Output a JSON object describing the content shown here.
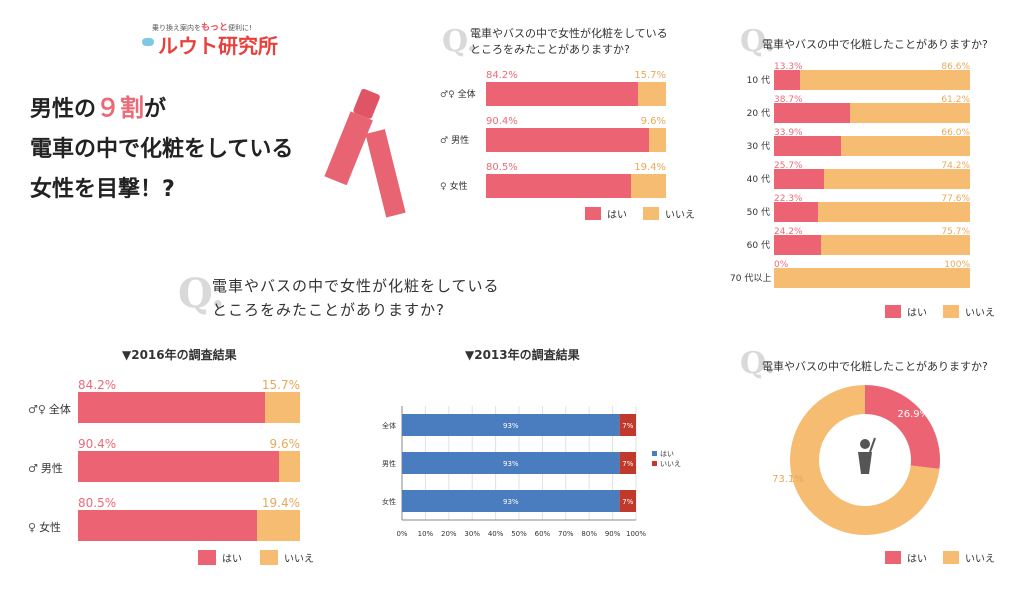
{
  "colors": {
    "hai": "#ec6474",
    "iie": "#f5bc72",
    "blue": "#4a7cc0",
    "red": "#c0392b"
  },
  "logo": {
    "tagline_pre": "乗り換え案内を",
    "tagline_em": "もっと",
    "tagline_post": "便利に!",
    "name": "ルウト研究所"
  },
  "headline": {
    "line1_a": "男性の",
    "line1_num": "９割",
    "line1_b": "が",
    "line2": "電車の中で化粧をしている",
    "line3": "女性を目撃！?"
  },
  "legend": {
    "hai": "はい",
    "iie": "いいえ"
  },
  "q_mark": "Q.",
  "q_big": {
    "line1": "電車やバスの中で女性が化粧をしている",
    "line2": "ところをみたことがありますか?"
  },
  "chart_data": [
    {
      "type": "bar",
      "title": "電車やバスの中で女性が化粧をしているところをみたことがありますか?",
      "categories": [
        "全体",
        "男性",
        "女性"
      ],
      "series": [
        {
          "name": "はい",
          "values": [
            84.2,
            90.4,
            80.5
          ]
        },
        {
          "name": "いいえ",
          "values": [
            15.7,
            9.6,
            19.4
          ]
        }
      ],
      "labels_hai": [
        "84.2%",
        "90.4%",
        "80.5%"
      ],
      "labels_iie": [
        "15.7%",
        "9.6%",
        "19.4%"
      ]
    },
    {
      "type": "bar",
      "title": "電車やバスの中で化粧したことがありますか?",
      "categories": [
        "10 代",
        "20 代",
        "30 代",
        "40 代",
        "50 代",
        "60 代",
        "70 代以上"
      ],
      "series": [
        {
          "name": "はい",
          "values": [
            13.3,
            38.7,
            33.9,
            25.7,
            22.3,
            24.2,
            0
          ]
        },
        {
          "name": "いいえ",
          "values": [
            86.6,
            61.2,
            66.0,
            74.2,
            77.6,
            75.7,
            100
          ]
        }
      ],
      "labels_hai": [
        "13.3%",
        "38.7%",
        "33.9%",
        "25.7%",
        "22.3%",
        "24.2%",
        "0%"
      ],
      "labels_iie": [
        "86.6%",
        "61.2%",
        "66.0%",
        "74.2%",
        "77.6%",
        "75.7%",
        "100%"
      ]
    },
    {
      "type": "bar",
      "title": "▼2016年の調査結果",
      "categories": [
        "全体",
        "男性",
        "女性"
      ],
      "series": [
        {
          "name": "はい",
          "values": [
            84.2,
            90.4,
            80.5
          ]
        },
        {
          "name": "いいえ",
          "values": [
            15.7,
            9.6,
            19.4
          ]
        }
      ],
      "labels_hai": [
        "84.2%",
        "90.4%",
        "80.5%"
      ],
      "labels_iie": [
        "15.7%",
        "9.6%",
        "19.4%"
      ]
    },
    {
      "type": "bar",
      "title": "▼2013年の調査結果",
      "categories": [
        "全体",
        "男性",
        "女性"
      ],
      "series": [
        {
          "name": "はい",
          "values": [
            93,
            93,
            93
          ]
        },
        {
          "name": "いいえ",
          "values": [
            7,
            7,
            7
          ]
        }
      ],
      "labels_hai": [
        "93%",
        "93%",
        "93%"
      ],
      "labels_iie": [
        "7%",
        "7%",
        "7%"
      ],
      "xticks": [
        "0%",
        "10%",
        "20%",
        "30%",
        "40%",
        "50%",
        "60%",
        "70%",
        "80%",
        "90%",
        "100%"
      ],
      "xlim": [
        0,
        100
      ]
    },
    {
      "type": "pie",
      "title": "電車やバスの中で化粧したことがありますか?",
      "categories": [
        "はい",
        "いいえ"
      ],
      "values": [
        26.9,
        73.1
      ],
      "labels": [
        "26.9%",
        "73.1%"
      ]
    }
  ]
}
